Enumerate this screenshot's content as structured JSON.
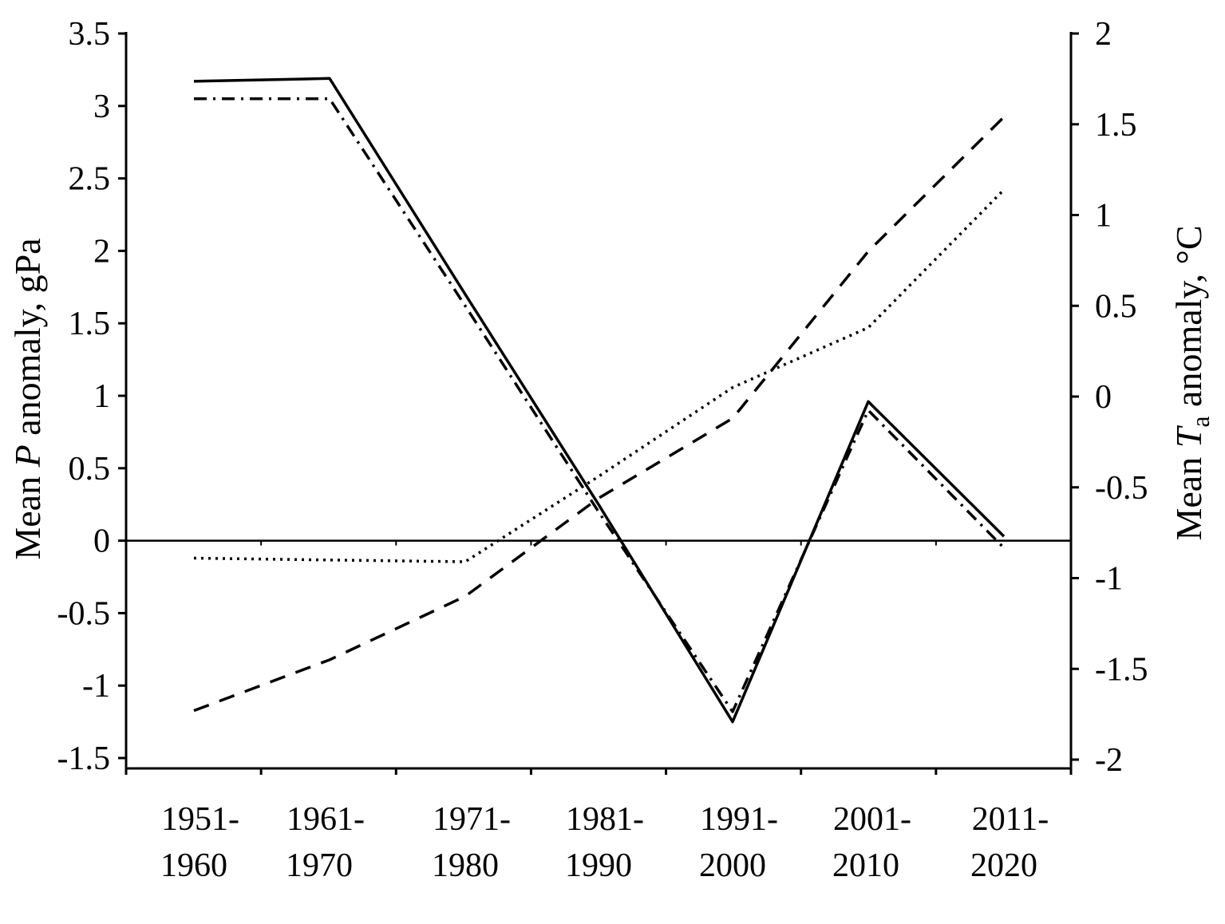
{
  "chart_data": {
    "type": "line",
    "title": "",
    "categories": [
      [
        "1951-",
        "1960"
      ],
      [
        "1961-",
        "1970"
      ],
      [
        "1971-",
        "1980"
      ],
      [
        "1981-",
        "1990"
      ],
      [
        "1991-",
        "2000"
      ],
      [
        "2001-",
        "2010"
      ],
      [
        "2011-",
        "2020"
      ]
    ],
    "ylabel_left": {
      "prefix": "Mean ",
      "var": "P",
      "suffix": " anomaly, gPa"
    },
    "ylabel_right": {
      "prefix": "Mean ",
      "var": "T",
      "sub": "a",
      "suffix": " anomaly, °C"
    },
    "ylim_left": [
      -1.5,
      3.5
    ],
    "ylim_right": [
      -2,
      2
    ],
    "yticks_left": [
      "-1.5",
      "-1",
      "-0.5",
      "0",
      "0.5",
      "1",
      "1.5",
      "2",
      "2.5",
      "3",
      "3.5"
    ],
    "yticks_right": [
      "-2",
      "-1.5",
      "-1",
      "-0.5",
      "0",
      "0.5",
      "1",
      "1.5",
      "2"
    ],
    "zero_line": true,
    "grid": false,
    "series": [
      {
        "name": "P anomaly (solid)",
        "axis": "left",
        "style": "solid",
        "values": [
          3.17,
          3.19,
          1.7,
          0.25,
          -1.25,
          0.96,
          0.03
        ]
      },
      {
        "name": "P anomaly (dash-dot)",
        "axis": "left",
        "style": "dashdot",
        "values": [
          3.05,
          3.05,
          1.62,
          0.2,
          -1.18,
          0.9,
          -0.05
        ]
      },
      {
        "name": "Ta anomaly (dashed)",
        "axis": "right",
        "style": "dashed",
        "values": [
          -1.73,
          -1.45,
          -1.1,
          -0.56,
          -0.12,
          0.8,
          1.54
        ]
      },
      {
        "name": "Ta anomaly (dotted)",
        "axis": "right",
        "style": "dotted",
        "values": [
          -0.89,
          -0.9,
          -0.91,
          -0.44,
          0.05,
          0.38,
          1.14
        ]
      }
    ]
  }
}
